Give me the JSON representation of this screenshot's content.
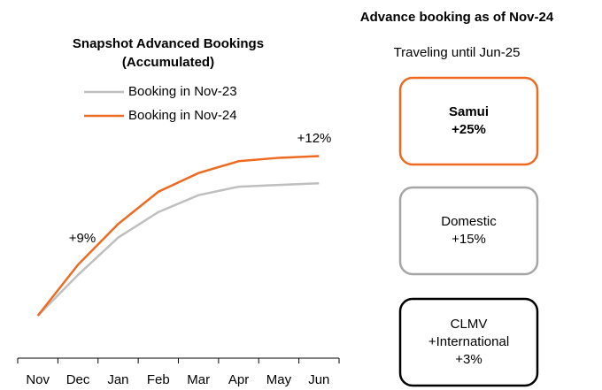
{
  "chart_data": {
    "type": "line",
    "title": "Snapshot Advanced Bookings",
    "subtitle": "(Accumulated)",
    "categories": [
      "Nov",
      "Dec",
      "Jan",
      "Feb",
      "Mar",
      "Apr",
      "May",
      "Jun"
    ],
    "series": [
      {
        "name": "Booking in Nov-23",
        "color": "#bfbfbf",
        "values": [
          0,
          24,
          46,
          61,
          71,
          76,
          77,
          78
        ]
      },
      {
        "name": "Booking in Nov-24",
        "color": "#ed6b21",
        "values": [
          0,
          30,
          54,
          73,
          84,
          91,
          93,
          94
        ]
      }
    ],
    "ylim": [
      0,
      100
    ],
    "annotations": [
      "+9%",
      "+12%"
    ]
  },
  "panel": {
    "title": "Advance booking as of Nov-24",
    "subtitle": "Traveling until Jun-25",
    "boxes": [
      {
        "lines": [
          "Samui",
          "+25%"
        ],
        "color": "#ed6b21",
        "bold": true
      },
      {
        "lines": [
          "Domestic",
          "+15%"
        ],
        "color": "#a6a6a6",
        "bold": false
      },
      {
        "lines": [
          "CLMV",
          "+International",
          "+3%"
        ],
        "color": "#000000",
        "bold": false
      }
    ]
  }
}
